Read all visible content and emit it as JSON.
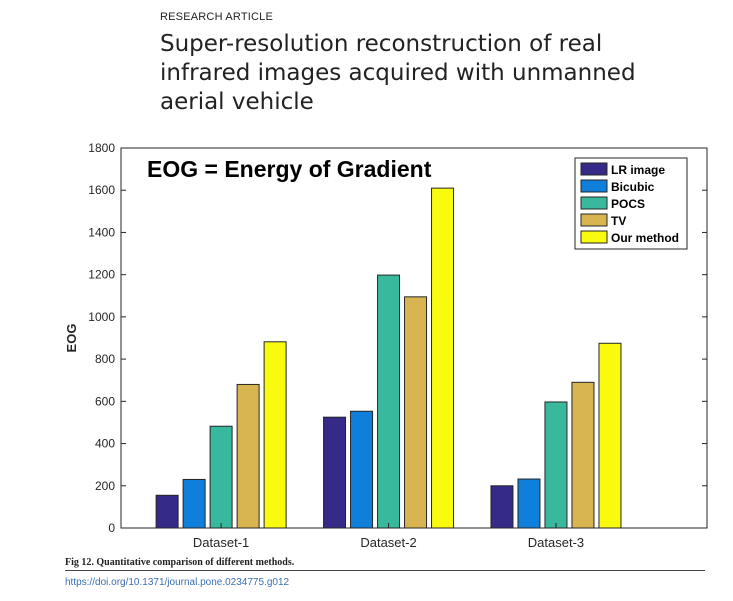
{
  "header": {
    "article_type": "RESEARCH ARTICLE",
    "title": "Super-resolution reconstruction of real infrared images acquired with unmanned aerial vehicle"
  },
  "chart_data": {
    "type": "bar",
    "annotation": "EOG = Energy of Gradient",
    "xlabel": "",
    "ylabel": "EOG",
    "ylim": [
      0,
      1800
    ],
    "yticks": [
      0,
      200,
      400,
      600,
      800,
      1000,
      1200,
      1400,
      1600,
      1800
    ],
    "categories": [
      "Dataset-1",
      "Dataset-2",
      "Dataset-3"
    ],
    "series": [
      {
        "name": "LR image",
        "color": "#352a87",
        "values": [
          155,
          525,
          200
        ]
      },
      {
        "name": "Bicubic",
        "color": "#0f7fdc",
        "values": [
          230,
          553,
          232
        ]
      },
      {
        "name": "POCS",
        "color": "#38b99e",
        "values": [
          482,
          1198,
          597
        ]
      },
      {
        "name": "TV",
        "color": "#d9b552",
        "values": [
          680,
          1095,
          690
        ]
      },
      {
        "name": "Our method",
        "color": "#f9fb0e",
        "values": [
          882,
          1610,
          875
        ]
      }
    ],
    "legend_position": "top-right",
    "grid": false
  },
  "figure": {
    "caption": "Fig 12.  Quantitative comparison of different methods.",
    "doi": "https://doi.org/10.1371/journal.pone.0234775.g012"
  }
}
